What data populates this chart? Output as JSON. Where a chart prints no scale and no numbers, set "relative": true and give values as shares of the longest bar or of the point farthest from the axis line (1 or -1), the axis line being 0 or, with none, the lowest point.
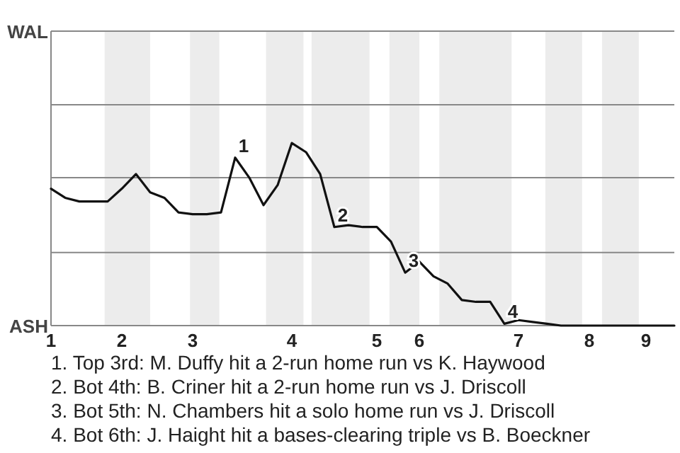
{
  "chart_data": {
    "type": "line",
    "color": "#111111",
    "relative": true,
    "categories": [
      "1",
      null,
      null,
      null,
      null,
      "2",
      null,
      null,
      null,
      null,
      "3",
      null,
      null,
      null,
      null,
      null,
      null,
      "4",
      null,
      null,
      null,
      null,
      null,
      "5",
      null,
      null,
      "6",
      null,
      null,
      null,
      null,
      null,
      null,
      "7",
      null,
      null,
      null,
      null,
      "8",
      null,
      null,
      null,
      "9",
      null,
      null
    ],
    "values": [
      0.75,
      0.7,
      0.68,
      0.68,
      0.68,
      0.75,
      0.83,
      0.73,
      0.7,
      0.62,
      0.61,
      0.61,
      0.62,
      0.92,
      0.81,
      0.66,
      0.77,
      1,
      0.95,
      0.83,
      0.54,
      0.55,
      0.54,
      0.54,
      0.46,
      0.29,
      0.35,
      0.27,
      0.23,
      0.14,
      0.13,
      0.13,
      0.01,
      0.03,
      0.02,
      0.01,
      0,
      0,
      0,
      0,
      0,
      0,
      0,
      0,
      0
    ],
    "marker": "none",
    "line_style": "solid",
    "ref_lines": [
      {
        "axis": "y",
        "value": 0.4,
        "color": "#888888"
      },
      {
        "axis": "y",
        "value": 0.81,
        "color": "#888888"
      },
      {
        "axis": "y",
        "value": 1.21,
        "color": "#888888"
      }
    ],
    "annotations": [
      "WAL",
      "ASH",
      {
        "text": "1",
        "y": 0.92
      },
      {
        "text": "2",
        "y": 0.54
      },
      {
        "text": "3",
        "y": 0.29
      },
      {
        "text": "4",
        "y": 0.01
      },
      "1. Top 3rd: M. Duffy hit a 2-run home run vs K. Haywood",
      "2. Bot 4th: B. Criner hit a 2-run home run vs J. Driscoll",
      "3. Bot 5th: N. Chambers hit a solo home run vs J. Driscoll",
      "4. Bot 6th: J. Haight hit a bases-clearing triple vs B. Boeckner"
    ]
  }
}
